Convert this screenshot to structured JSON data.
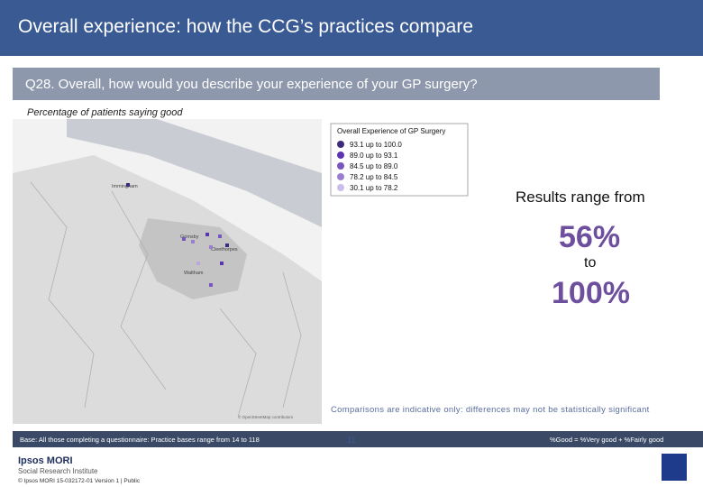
{
  "header": {
    "title": "Overall experience: how the CCG’s practices compare"
  },
  "question": "Q28. Overall, how would you describe your experience of your GP surgery?",
  "subtitle": "Percentage of patients saying good",
  "map": {
    "places": [
      "Immingham",
      "Grimsby",
      "Cleethorpes",
      "Waltham"
    ],
    "copyright": "© OpenStreetMap contributors"
  },
  "legend": {
    "title": "Overall Experience of GP Surgery",
    "items": [
      {
        "label": "93.1 up to 100.0",
        "color": "#3d2a7a"
      },
      {
        "label": "89.0 up to  93.1",
        "color": "#5a35b0"
      },
      {
        "label": "84.5 up to  89.0",
        "color": "#7a55c0"
      },
      {
        "label": "78.2 up to  84.5",
        "color": "#9a7fd0"
      },
      {
        "label": "30.1 up to  78.2",
        "color": "#cbbde6"
      }
    ]
  },
  "results": {
    "lead": "Results range from",
    "min": "56%",
    "joiner": "to",
    "max": "100%"
  },
  "note": "Comparisons are indicative only: differences may not be statistically significant",
  "footer": {
    "base": "Base: All those completing a questionnaire: Practice bases range from 14 to 118",
    "definition": "%Good = %Very good + %Fairly good",
    "page": "11",
    "logo": "Ipsos MORI",
    "logo_sub": "Social Research Institute",
    "copyright": "© Ipsos MORI    15-032172-01 Version 1 | Public"
  }
}
